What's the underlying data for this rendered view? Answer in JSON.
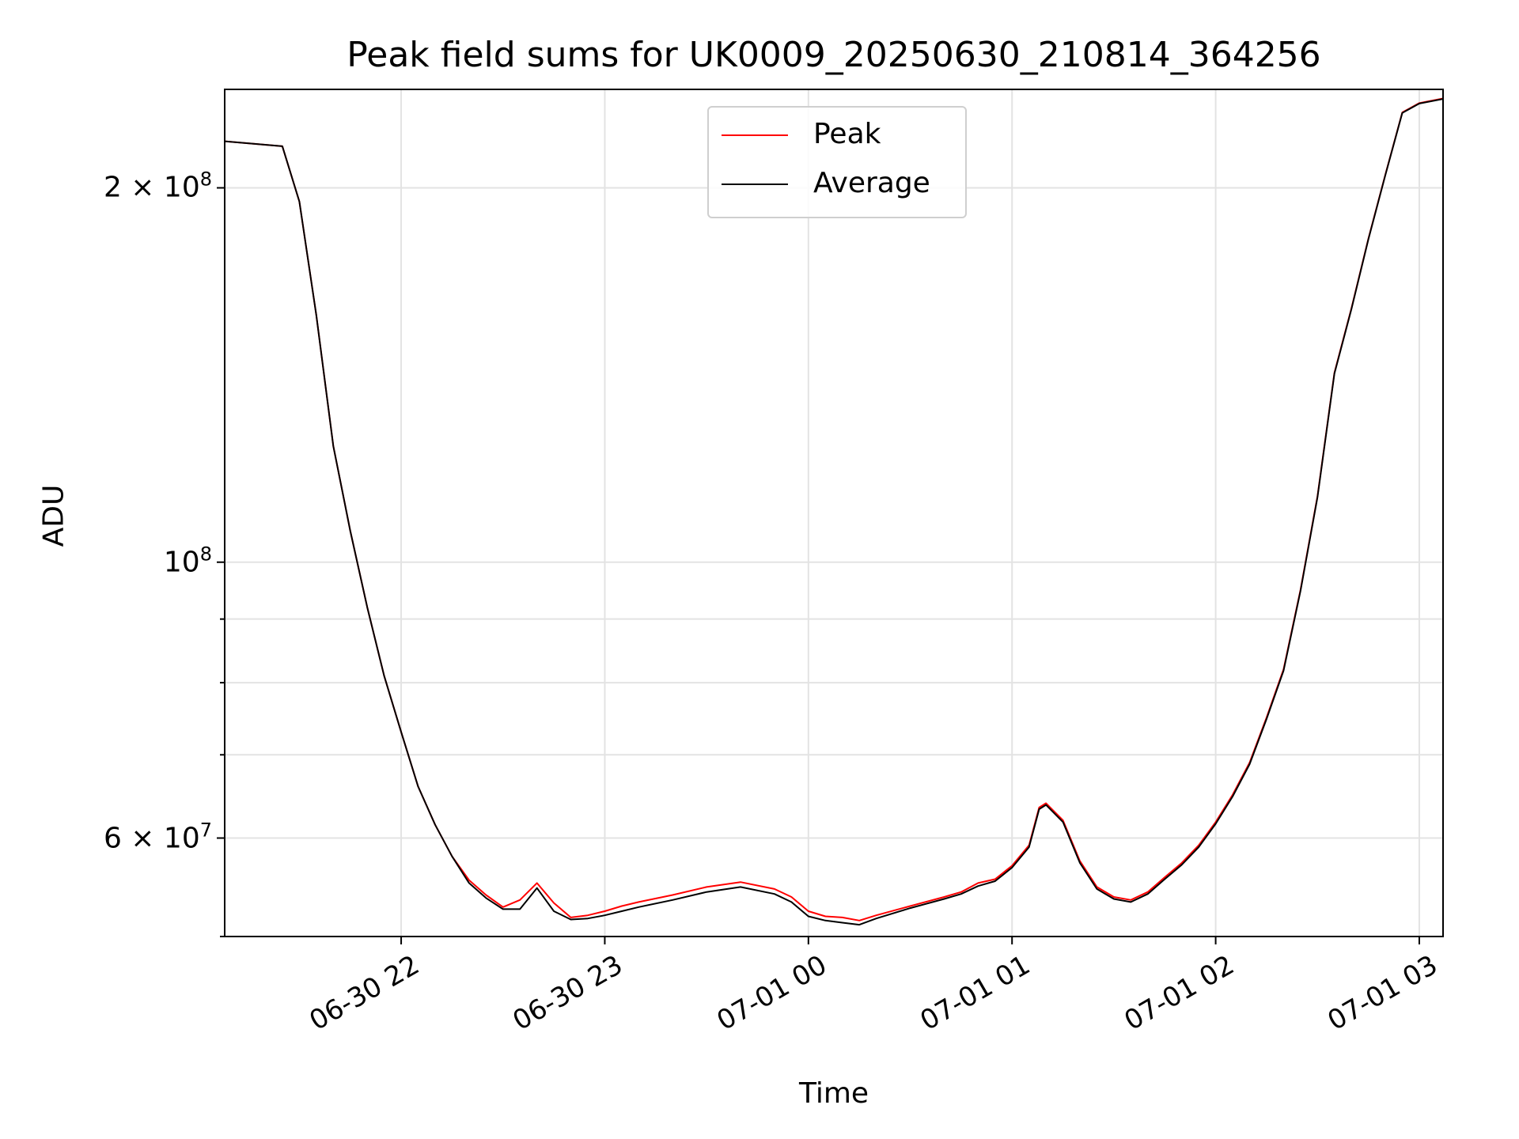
{
  "chart_data": {
    "type": "line",
    "title": "Peak field sums for UK0009_20250630_210814_364256",
    "xlabel": "Time",
    "ylabel": "ADU",
    "yscale": "log",
    "ylim": [
      50000000,
      240000000
    ],
    "xlim": [
      "2025-06-30 21:08",
      "2025-07-01 03:07"
    ],
    "grid": true,
    "legend_placement": "upper center",
    "x_tick_labels": [
      "06-30 22",
      "06-30 23",
      "07-01 00",
      "07-01 01",
      "07-01 02",
      "07-01 03"
    ],
    "y_tick_labels": [
      {
        "value": 200000000,
        "mantissa": "2",
        "exponent": "8"
      },
      {
        "value": 100000000,
        "mantissa": "",
        "exponent": "8"
      },
      {
        "value": 60000000,
        "mantissa": "6",
        "exponent": "7"
      }
    ],
    "x": [
      "2025-06-30 21:08",
      "2025-06-30 21:25",
      "2025-06-30 21:30",
      "2025-06-30 21:35",
      "2025-06-30 21:40",
      "2025-06-30 21:45",
      "2025-06-30 21:50",
      "2025-06-30 21:55",
      "2025-06-30 22:00",
      "2025-06-30 22:05",
      "2025-06-30 22:10",
      "2025-06-30 22:15",
      "2025-06-30 22:20",
      "2025-06-30 22:25",
      "2025-06-30 22:30",
      "2025-06-30 22:35",
      "2025-06-30 22:40",
      "2025-06-30 22:45",
      "2025-06-30 22:50",
      "2025-06-30 22:55",
      "2025-06-30 23:00",
      "2025-06-30 23:05",
      "2025-06-30 23:10",
      "2025-06-30 23:20",
      "2025-06-30 23:30",
      "2025-06-30 23:40",
      "2025-06-30 23:50",
      "2025-06-30 23:55",
      "2025-07-01 00:00",
      "2025-07-01 00:05",
      "2025-07-01 00:10",
      "2025-07-01 00:15",
      "2025-07-01 00:20",
      "2025-07-01 00:30",
      "2025-07-01 00:40",
      "2025-07-01 00:45",
      "2025-07-01 00:50",
      "2025-07-01 00:55",
      "2025-07-01 01:00",
      "2025-07-01 01:05",
      "2025-07-01 01:08",
      "2025-07-01 01:10",
      "2025-07-01 01:15",
      "2025-07-01 01:20",
      "2025-07-01 01:25",
      "2025-07-01 01:30",
      "2025-07-01 01:35",
      "2025-07-01 01:40",
      "2025-07-01 01:45",
      "2025-07-01 01:50",
      "2025-07-01 01:55",
      "2025-07-01 02:00",
      "2025-07-01 02:05",
      "2025-07-01 02:10",
      "2025-07-01 02:15",
      "2025-07-01 02:20",
      "2025-07-01 02:25",
      "2025-07-01 02:30",
      "2025-07-01 02:35",
      "2025-07-01 02:40",
      "2025-07-01 02:45",
      "2025-07-01 02:50",
      "2025-07-01 02:55",
      "2025-07-01 03:00",
      "2025-07-01 03:07"
    ],
    "series": [
      {
        "name": "Peak",
        "color": "#ff0000",
        "values": [
          218000000,
          216000000,
          195000000,
          158000000,
          124000000,
          106000000,
          92000000,
          81000000,
          73000000,
          66000000,
          61500000,
          58000000,
          55500000,
          54000000,
          52800000,
          53500000,
          55200000,
          53200000,
          51800000,
          52000000,
          52400000,
          52900000,
          53300000,
          54000000,
          54800000,
          55300000,
          54600000,
          53800000,
          52400000,
          51900000,
          51800000,
          51500000,
          52000000,
          52900000,
          53800000,
          54300000,
          55200000,
          55600000,
          57000000,
          59200000,
          63500000,
          64000000,
          62000000,
          57500000,
          54800000,
          53800000,
          53500000,
          54300000,
          55800000,
          57300000,
          59200000,
          61800000,
          65000000,
          69000000,
          75000000,
          82000000,
          95000000,
          113000000,
          142000000,
          160000000,
          182000000,
          205000000,
          230000000,
          234000000,
          236000000
        ]
      },
      {
        "name": "Average",
        "color": "#000000",
        "values": [
          218000000,
          216000000,
          195000000,
          158000000,
          124000000,
          106000000,
          92000000,
          81000000,
          73000000,
          66000000,
          61500000,
          58000000,
          55200000,
          53700000,
          52600000,
          52600000,
          54700000,
          52400000,
          51600000,
          51700000,
          52000000,
          52400000,
          52800000,
          53500000,
          54300000,
          54800000,
          54100000,
          53300000,
          51900000,
          51500000,
          51300000,
          51100000,
          51700000,
          52700000,
          53600000,
          54100000,
          54900000,
          55400000,
          56800000,
          59000000,
          63300000,
          63800000,
          61800000,
          57300000,
          54600000,
          53600000,
          53300000,
          54100000,
          55600000,
          57100000,
          59000000,
          61600000,
          64800000,
          68800000,
          74800000,
          81800000,
          94800000,
          112800000,
          141800000,
          159800000,
          181800000,
          204800000,
          229800000,
          233800000,
          235800000
        ]
      }
    ]
  }
}
